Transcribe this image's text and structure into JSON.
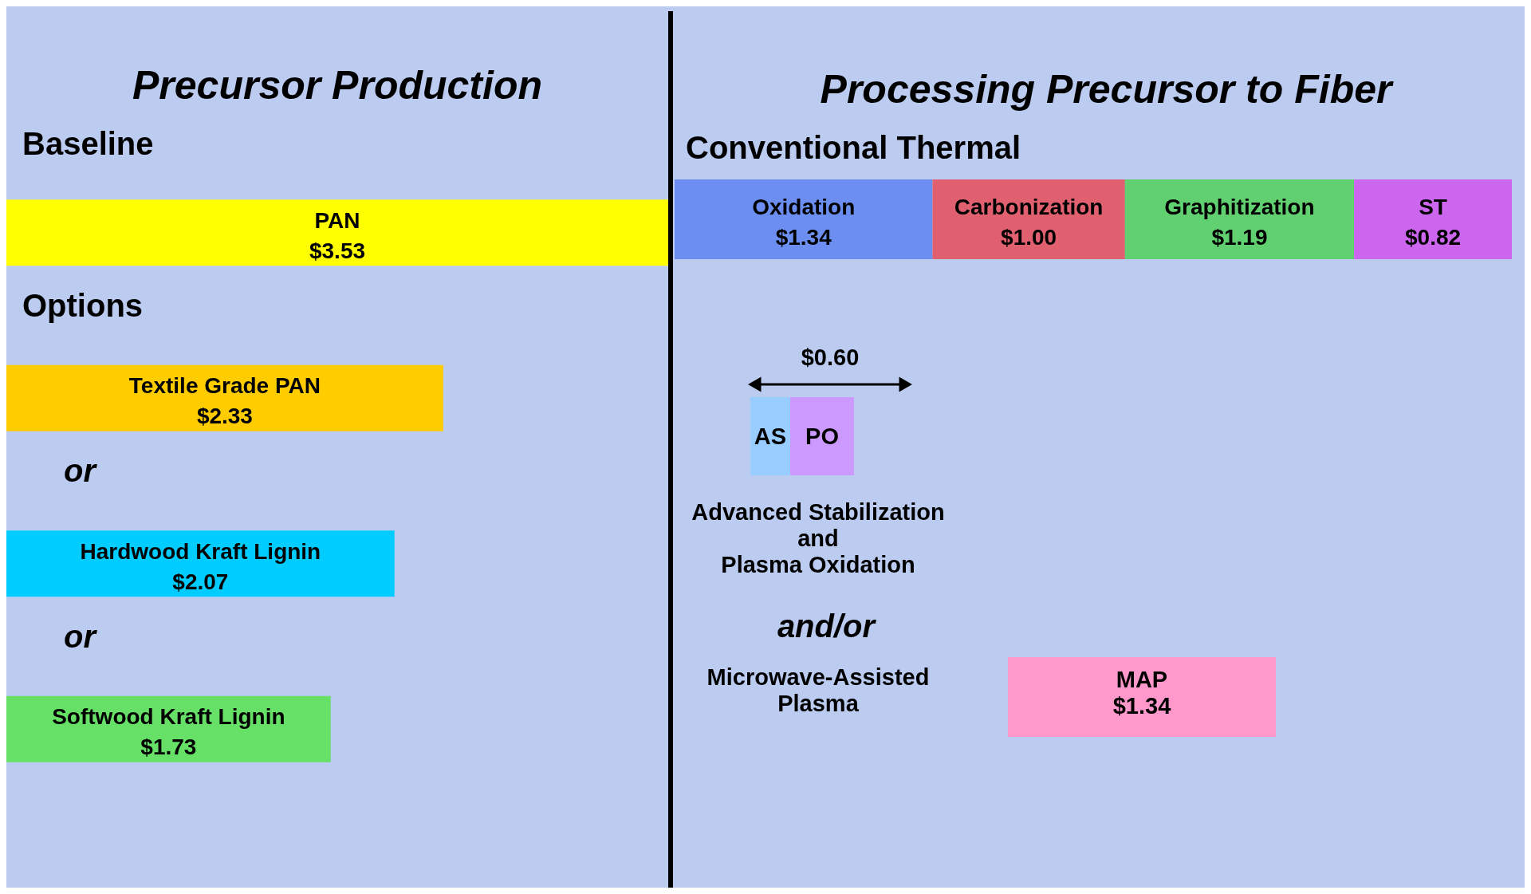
{
  "chart_data": [
    {
      "type": "bar",
      "orientation": "horizontal",
      "title": "Precursor Production",
      "categories": [
        "PAN",
        "Textile Grade PAN",
        "Hardwood Kraft Lignin",
        "Softwood Kraft Lignin"
      ],
      "values": [
        3.53,
        2.33,
        2.07,
        1.73
      ],
      "colors": [
        "#ffff00",
        "#ffcc00",
        "#00ccff",
        "#66e066"
      ],
      "value_labels": [
        "$3.53",
        "$2.33",
        "$2.07",
        "$1.73"
      ],
      "annotations": [
        "Baseline",
        "Options",
        "or",
        "or"
      ]
    },
    {
      "type": "bar",
      "orientation": "horizontal",
      "stacked": true,
      "title": "Processing Precursor to Fiber",
      "subtitle": "Conventional Thermal",
      "categories": [
        null
      ],
      "series": [
        {
          "name": "Oxidation",
          "color": "#6b8ef0",
          "values": [
            1.34
          ],
          "value_labels": [
            "$1.34"
          ]
        },
        {
          "name": "Carbonization",
          "color": "#e06070",
          "values": [
            1.0
          ],
          "value_labels": [
            "$1.00"
          ]
        },
        {
          "name": "Graphitization",
          "color": "#60d070",
          "values": [
            1.19
          ],
          "value_labels": [
            "$1.19"
          ]
        },
        {
          "name": "ST",
          "color": "#cc66ee",
          "values": [
            0.82
          ],
          "value_labels": [
            "$0.82"
          ]
        }
      ],
      "annotations": [
        "$0.60",
        "AS",
        "PO",
        "Advanced Stabilization\nand\nPlasma Oxidation",
        "and/or",
        "Microwave-Assisted\nPlasma",
        "MAP\n$1.34"
      ]
    }
  ]
}
